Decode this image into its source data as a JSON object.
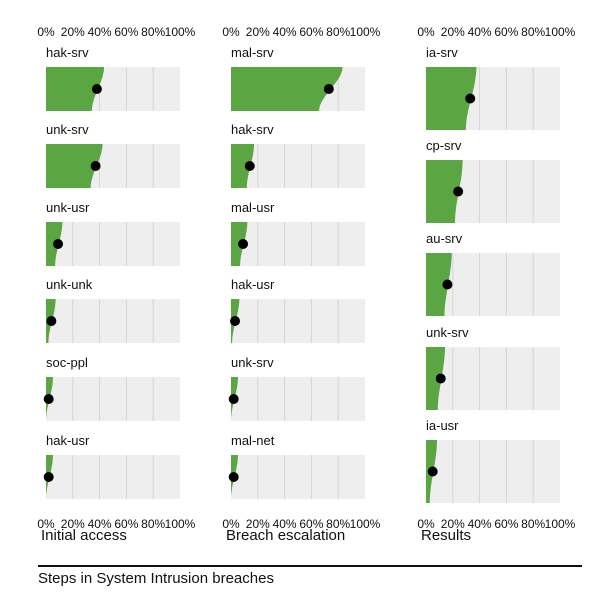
{
  "chart_data": {
    "type": "area",
    "colors": {
      "fill": "#5aa642",
      "panel_bg": "#eeeeee",
      "grid": "#d4d4d4",
      "dot": "#000000",
      "text": "#111111"
    },
    "tick_labels": [
      "0%",
      "20%",
      "40%",
      "60%",
      "80%",
      "100%"
    ],
    "xlim": [
      0,
      100
    ],
    "dot_meaning": "median",
    "columns": [
      {
        "title": "Initial access",
        "rows": [
          {
            "label": "hak-srv",
            "median": 38
          },
          {
            "label": "unk-srv",
            "median": 37
          },
          {
            "label": "unk-usr",
            "median": 9
          },
          {
            "label": "unk-unk",
            "median": 4
          },
          {
            "label": "soc-ppl",
            "median": 2
          },
          {
            "label": "hak-usr",
            "median": 2
          }
        ]
      },
      {
        "title": "Breach escalation",
        "rows": [
          {
            "label": "mal-srv",
            "median": 73
          },
          {
            "label": "hak-srv",
            "median": 14
          },
          {
            "label": "mal-usr",
            "median": 9
          },
          {
            "label": "hak-usr",
            "median": 3
          },
          {
            "label": "unk-srv",
            "median": 2
          },
          {
            "label": "mal-net",
            "median": 2
          }
        ]
      },
      {
        "title": "Results",
        "rows": [
          {
            "label": "ia-srv",
            "median": 33
          },
          {
            "label": "cp-srv",
            "median": 24
          },
          {
            "label": "au-srv",
            "median": 16
          },
          {
            "label": "unk-srv",
            "median": 11
          },
          {
            "label": "ia-usr",
            "median": 5
          }
        ]
      }
    ]
  },
  "caption": "Steps in System Intrusion breaches"
}
